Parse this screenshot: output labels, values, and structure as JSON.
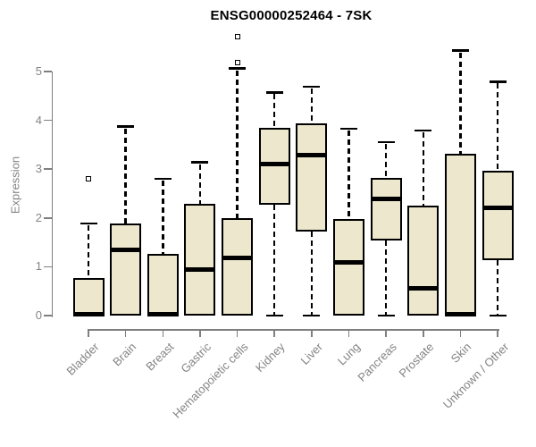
{
  "chart_data": {
    "type": "boxplot",
    "title": "ENSG00000252464 - 7SK",
    "ylabel": "Expression",
    "xlabel": "",
    "ylim": [
      0,
      5.8
    ],
    "yticks": [
      0,
      1,
      2,
      3,
      4,
      5
    ],
    "grid": false,
    "legend": "none",
    "categories": [
      "Bladder",
      "Brain",
      "Breast",
      "Gastric",
      "Hematopoietic cells",
      "Kidney",
      "Liver",
      "Lung",
      "Pancreas",
      "Prostate",
      "Skin",
      "Unknown / Other"
    ],
    "series": [
      {
        "name": "Bladder",
        "whisker_low": 0,
        "q1": 0,
        "median": 0.03,
        "q3": 0.77,
        "whisker_high": 1.89,
        "outliers": [
          2.81
        ]
      },
      {
        "name": "Brain",
        "whisker_low": 0,
        "q1": 0,
        "median": 1.34,
        "q3": 1.88,
        "whisker_high": 3.87,
        "outliers": []
      },
      {
        "name": "Breast",
        "whisker_low": 0,
        "q1": 0,
        "median": 0.03,
        "q3": 1.27,
        "whisker_high": 2.8,
        "outliers": []
      },
      {
        "name": "Gastric",
        "whisker_low": 0,
        "q1": 0,
        "median": 0.94,
        "q3": 2.29,
        "whisker_high": 3.14,
        "outliers": []
      },
      {
        "name": "Hematopoietic cells",
        "whisker_low": 0,
        "q1": 0,
        "median": 1.18,
        "q3": 1.99,
        "whisker_high": 5.06,
        "outliers": [
          5.72,
          5.18
        ]
      },
      {
        "name": "Kidney",
        "whisker_low": 0,
        "q1": 2.28,
        "median": 3.11,
        "q3": 3.84,
        "whisker_high": 4.57,
        "outliers": []
      },
      {
        "name": "Liver",
        "whisker_low": 0,
        "q1": 1.73,
        "median": 3.28,
        "q3": 3.93,
        "whisker_high": 4.69,
        "outliers": []
      },
      {
        "name": "Lung",
        "whisker_low": 0,
        "q1": 0,
        "median": 1.09,
        "q3": 1.98,
        "whisker_high": 3.83,
        "outliers": []
      },
      {
        "name": "Pancreas",
        "whisker_low": 0,
        "q1": 1.53,
        "median": 2.39,
        "q3": 2.82,
        "whisker_high": 3.55,
        "outliers": []
      },
      {
        "name": "Prostate",
        "whisker_low": 0,
        "q1": 0,
        "median": 0.56,
        "q3": 2.26,
        "whisker_high": 3.79,
        "outliers": []
      },
      {
        "name": "Skin",
        "whisker_low": 0,
        "q1": 0,
        "median": 0.03,
        "q3": 3.32,
        "whisker_high": 5.43,
        "outliers": []
      },
      {
        "name": "Unknown / Other",
        "whisker_low": 0,
        "q1": 1.14,
        "median": 2.2,
        "q3": 2.97,
        "whisker_high": 4.79,
        "outliers": []
      }
    ],
    "colors": {
      "box_fill": "#EDE8CD",
      "box_border": "#000000",
      "median": "#000000",
      "whisker": "#000000",
      "axis": "#7f7f7f",
      "axis_text": "#848484",
      "title_text": "#000000",
      "background": "#ffffff"
    }
  }
}
